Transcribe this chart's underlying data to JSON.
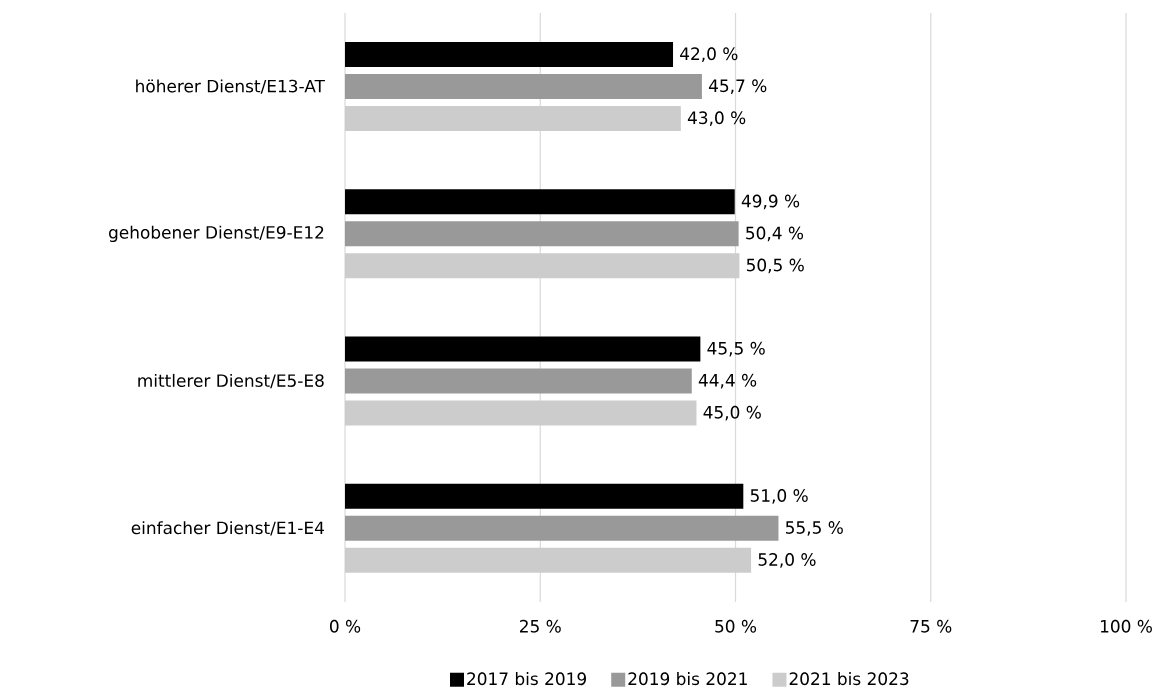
{
  "chart_data": {
    "type": "bar",
    "orientation": "horizontal",
    "categories": [
      "höherer Dienst/E13-AT",
      "gehobener Dienst/E9-E12",
      "mittlerer Dienst/E5-E8",
      "einfacher Dienst/E1-E4"
    ],
    "series": [
      {
        "name": "2017 bis 2019",
        "color": "#000000",
        "values": [
          42.0,
          49.9,
          45.5,
          51.0
        ],
        "value_labels": [
          "42,0 %",
          "49,9 %",
          "45,5 %",
          "51,0 %"
        ]
      },
      {
        "name": "2019 bis 2021",
        "color": "#999999",
        "values": [
          45.7,
          50.4,
          44.4,
          55.5
        ],
        "value_labels": [
          "45,7 %",
          "50,4 %",
          "44,4 %",
          "55,5 %"
        ]
      },
      {
        "name": "2021 bis 2023",
        "color": "#cccccc",
        "values": [
          43.0,
          50.5,
          45.0,
          52.0
        ],
        "value_labels": [
          "43,0 %",
          "50,5 %",
          "45,0 %",
          "52,0 %"
        ]
      }
    ],
    "xlim": [
      0,
      100
    ],
    "xticks": [
      {
        "value": 0,
        "label": "0 %"
      },
      {
        "value": 25,
        "label": "25 %"
      },
      {
        "value": 50,
        "label": "50 %"
      },
      {
        "value": 75,
        "label": "75 %"
      },
      {
        "value": 100,
        "label": "100 %"
      }
    ],
    "grid": "x",
    "legend": "bottom"
  }
}
